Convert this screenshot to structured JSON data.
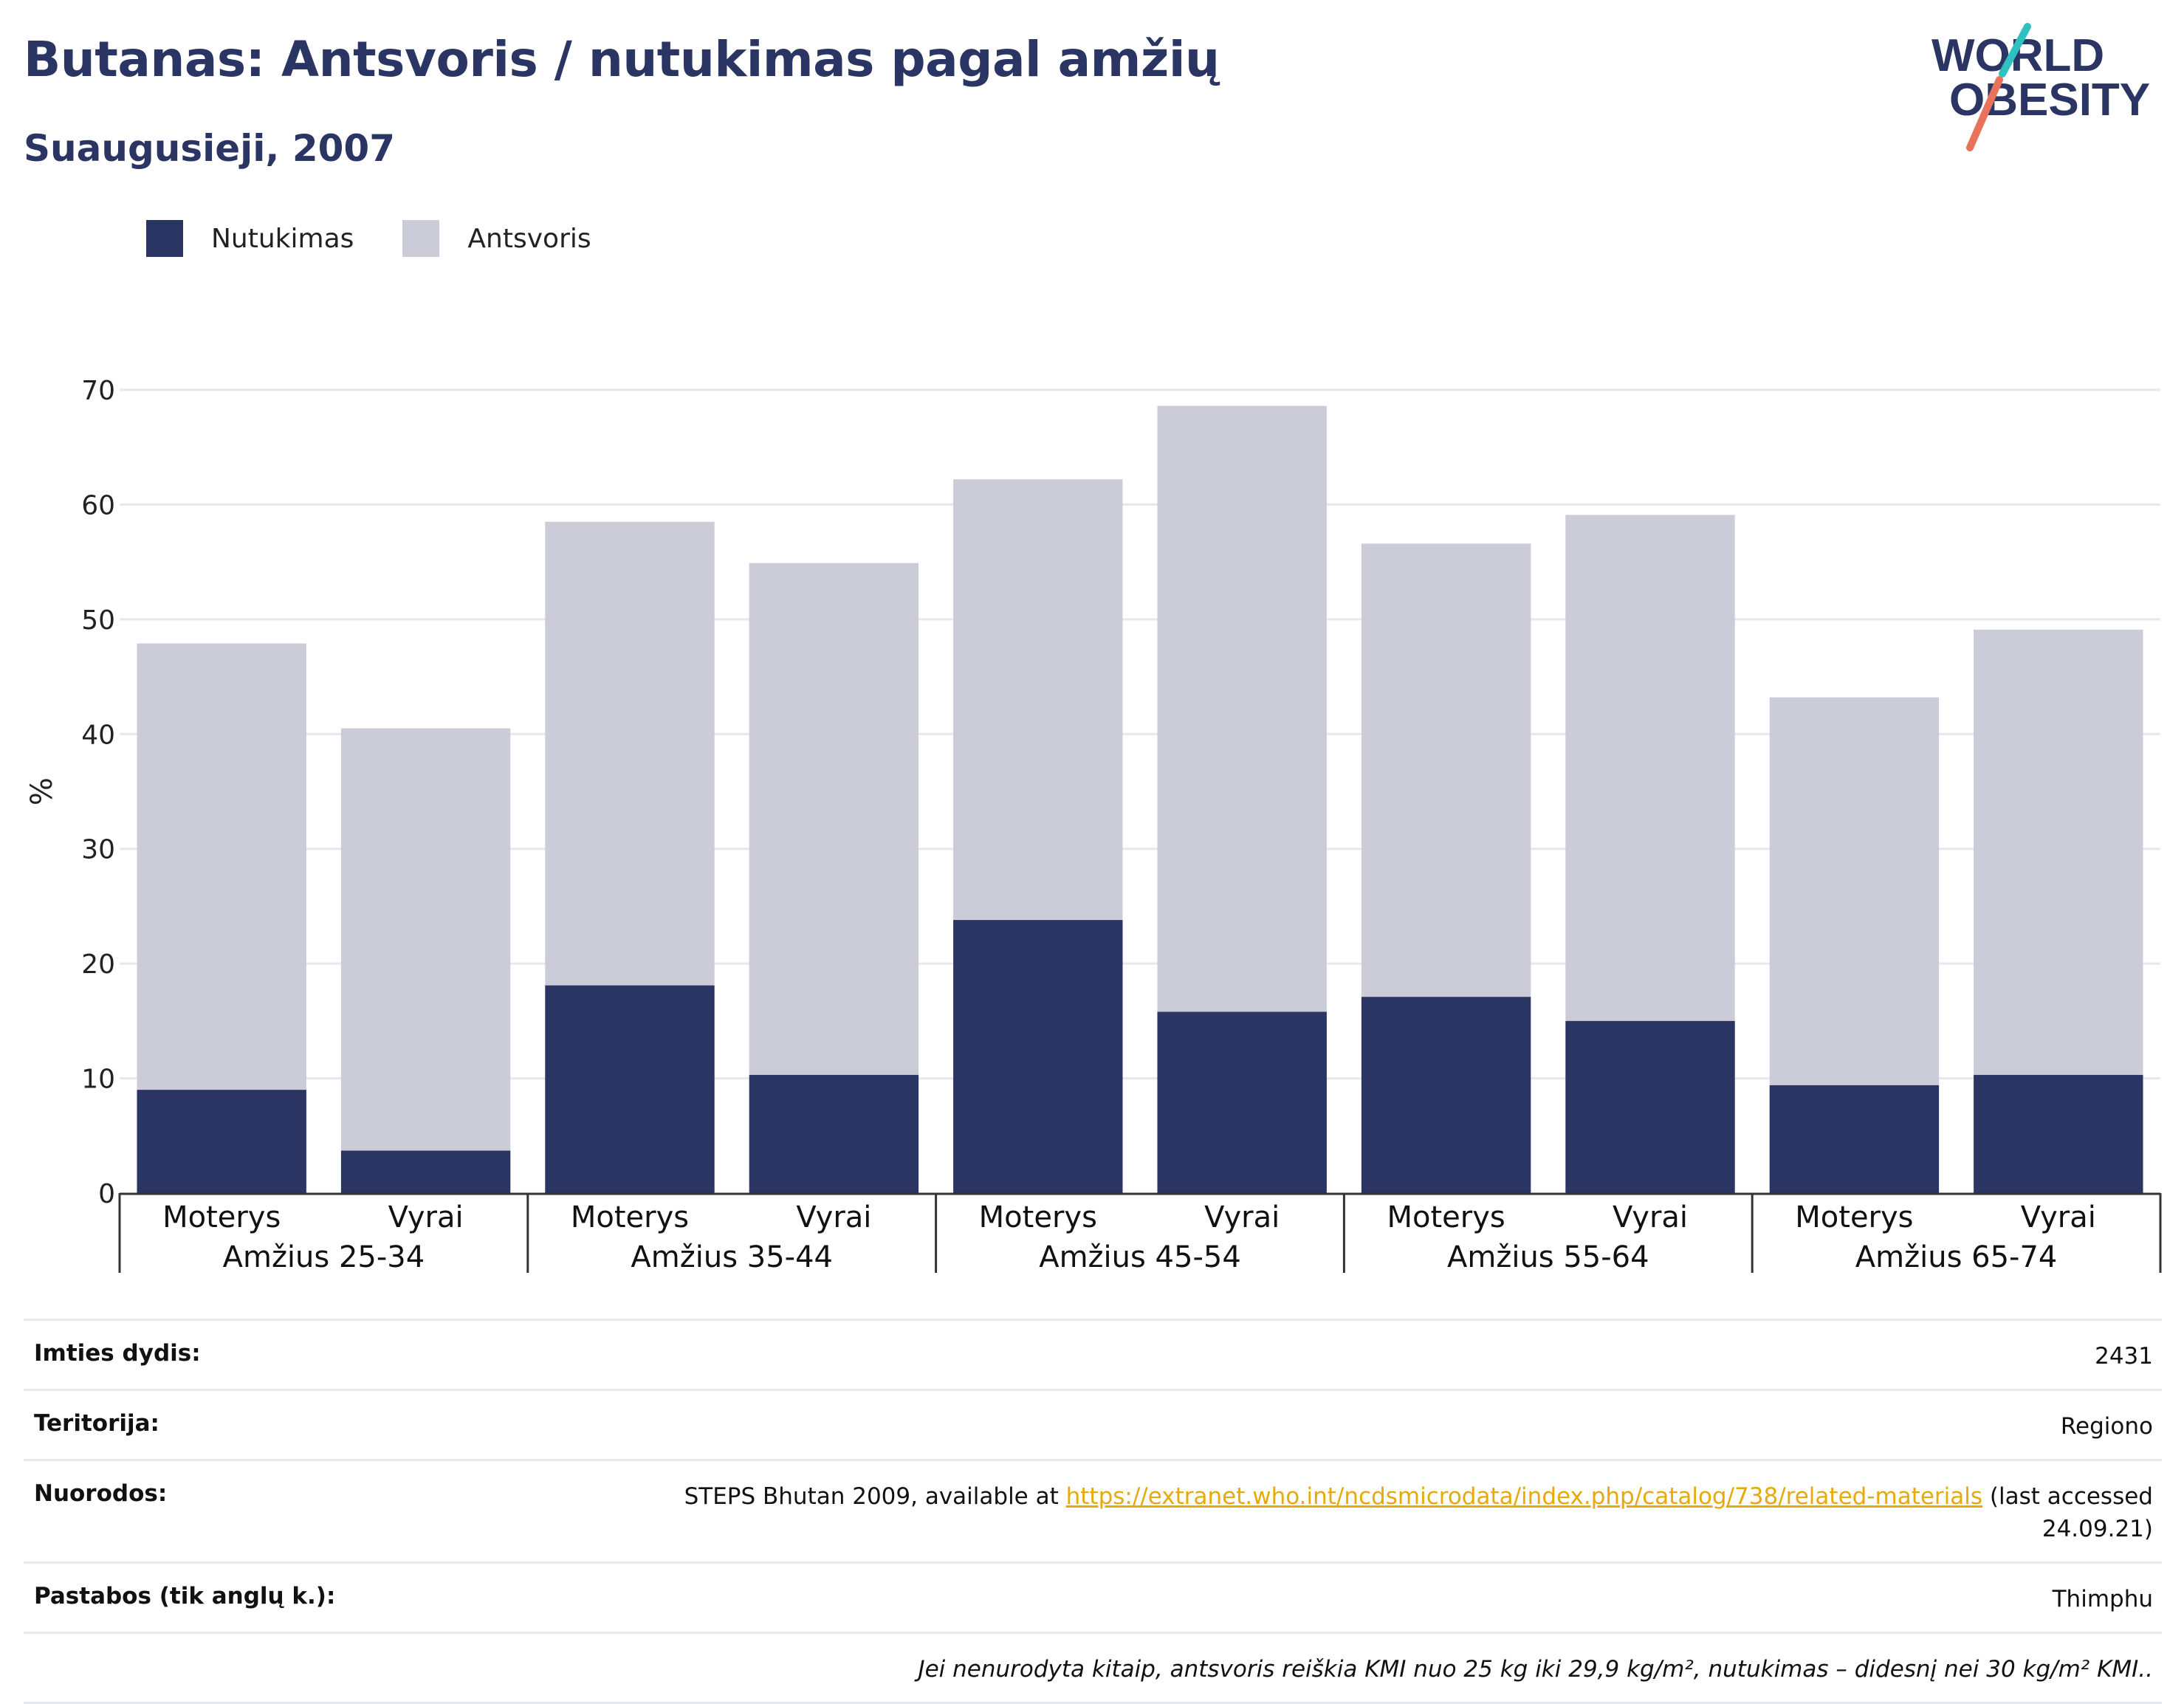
{
  "header": {
    "title": "Butanas: Antsvoris / nutukimas pagal amžių",
    "subtitle": "Suaugusieji, 2007"
  },
  "logo": {
    "line1": "WORLD",
    "line2": "OBESITY",
    "accent_teal": "#2fc1c1",
    "accent_coral": "#e8735a"
  },
  "colors": {
    "obesity": "#2b3563",
    "overweight": "#cbccd8",
    "grid": "#e6e8f0",
    "axis": "#333333",
    "link": "#e8a90a"
  },
  "legend": [
    {
      "label": "Nutukimas",
      "color": "#2b3563"
    },
    {
      "label": "Antsvoris",
      "color": "#cbccd8"
    }
  ],
  "chart_data": {
    "type": "bar",
    "stacked": true,
    "ylabel": "%",
    "ylim": [
      0,
      70
    ],
    "yticks": [
      0,
      10,
      20,
      30,
      40,
      50,
      60,
      70
    ],
    "groups": [
      "Amžius 25-34",
      "Amžius 35-44",
      "Amžius 45-54",
      "Amžius 55-64",
      "Amžius 65-74"
    ],
    "categories": [
      "Moterys",
      "Vyrai",
      "Moterys",
      "Vyrai",
      "Moterys",
      "Vyrai",
      "Moterys",
      "Vyrai",
      "Moterys",
      "Vyrai"
    ],
    "series": [
      {
        "name": "Nutukimas",
        "values": [
          9.0,
          3.7,
          18.1,
          10.3,
          23.8,
          15.8,
          17.1,
          15.0,
          9.4,
          10.3
        ]
      },
      {
        "name": "Antsvoris",
        "values": [
          38.9,
          36.8,
          40.4,
          44.6,
          38.4,
          52.8,
          39.5,
          44.1,
          33.8,
          38.8
        ]
      }
    ],
    "grid": true,
    "legend_position": "top-left"
  },
  "info": {
    "sample_label": "Imties dydis:",
    "sample_value": "2431",
    "territory_label": "Teritorija:",
    "territory_value": "Regiono",
    "refs_label": "Nuorodos:",
    "refs_prefix": "STEPS Bhutan 2009, available at ",
    "refs_link": "https://extranet.who.int/ncdsmicrodata/index.php/catalog/738/related-materials",
    "refs_suffix": " (last accessed 24.09.21)",
    "notes_label": "Pastabos (tik anglų k.):",
    "notes_value": "Thimphu",
    "footnote": "Jei nenurodyta kitaip, antsvoris reiškia KMI nuo 25 kg iki 29,9 kg/m², nutukimas – didesnį nei 30 kg/m² KMI.."
  }
}
